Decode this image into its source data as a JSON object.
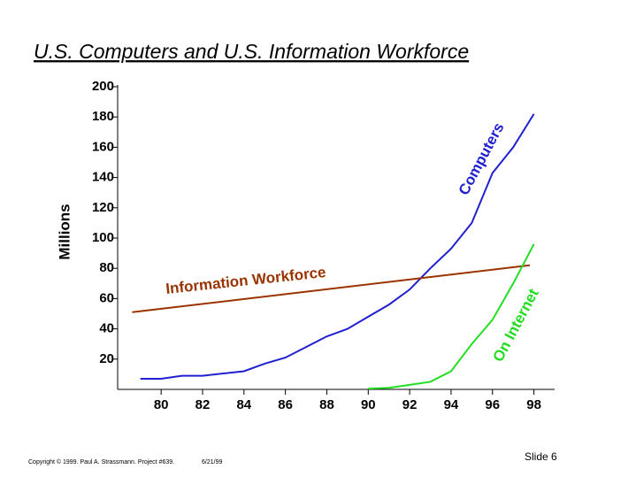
{
  "chart_data": {
    "type": "line",
    "title": "U.S. Computers and U.S. Information Workforce",
    "y_label": "Millions",
    "xlim": [
      77.9,
      99.0
    ],
    "xticks": [
      80,
      82,
      84,
      86,
      88,
      90,
      92,
      94,
      96,
      98
    ],
    "ylim": [
      0,
      200
    ],
    "yticks": [
      20,
      40,
      60,
      80,
      100,
      120,
      140,
      160,
      180,
      200
    ],
    "series": [
      {
        "name": "Computers",
        "color": "#2020d0",
        "x": [
          79,
          80,
          81,
          82,
          83,
          84,
          85,
          86,
          87,
          88,
          89,
          90,
          91,
          92,
          93,
          94,
          95,
          96,
          97,
          98
        ],
        "values": [
          7,
          7,
          9,
          9,
          10.5,
          12,
          17,
          21,
          28,
          35,
          40,
          48,
          56,
          66,
          80,
          93,
          110,
          143,
          160,
          182
        ]
      },
      {
        "name": "Information Workforce",
        "color": "#993300",
        "x": [
          78.6,
          97.8
        ],
        "values": [
          51,
          82
        ]
      },
      {
        "name": "On Internet",
        "color": "#22dd22",
        "x": [
          90,
          91,
          92,
          93,
          94,
          95,
          96,
          97,
          98
        ],
        "values": [
          0.5,
          1,
          3,
          5,
          12,
          30,
          46,
          70,
          96
        ]
      }
    ],
    "footer": "Copyright © 1999. Paul A. Strassmann. Project #639.",
    "date": "6/21/99",
    "slide": "Slide 6"
  }
}
